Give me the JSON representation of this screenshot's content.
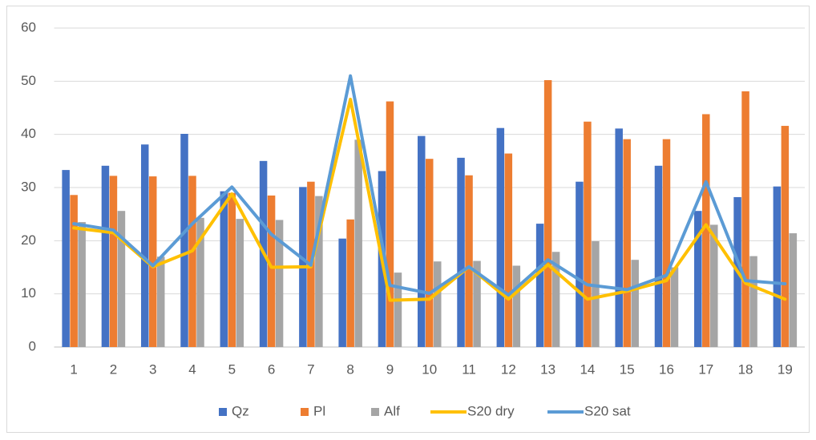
{
  "chart_data": {
    "type": "bar-line",
    "categories": [
      "1",
      "2",
      "3",
      "4",
      "5",
      "6",
      "7",
      "8",
      "9",
      "10",
      "11",
      "12",
      "13",
      "14",
      "15",
      "16",
      "17",
      "18",
      "19"
    ],
    "series": [
      {
        "name": "Qz",
        "type": "bar",
        "color": "#4472c4",
        "values": [
          33.3,
          34.1,
          38.1,
          40.1,
          29.3,
          35.0,
          30.1,
          20.4,
          33.1,
          39.7,
          35.6,
          41.2,
          23.2,
          31.1,
          41.1,
          34.1,
          25.6,
          28.2,
          30.2
        ]
      },
      {
        "name": "Pl",
        "type": "bar",
        "color": "#ed7d31",
        "values": [
          28.6,
          32.2,
          32.1,
          32.2,
          29.0,
          28.5,
          31.1,
          24.0,
          46.2,
          35.4,
          32.3,
          36.4,
          50.2,
          42.4,
          39.1,
          39.1,
          43.8,
          48.1,
          41.6
        ]
      },
      {
        "name": "Alf",
        "type": "bar",
        "color": "#a5a5a5",
        "values": [
          23.5,
          25.6,
          17.0,
          24.3,
          24.1,
          23.9,
          28.4,
          39.0,
          14.0,
          16.1,
          16.2,
          15.3,
          17.9,
          19.9,
          16.4,
          15.0,
          23.0,
          17.1,
          21.4
        ]
      },
      {
        "name": "S20 dry",
        "type": "line",
        "color": "#ffc000",
        "values": [
          22.4,
          21.5,
          15.1,
          18.1,
          28.8,
          15.0,
          15.1,
          46.6,
          8.8,
          9.0,
          15.1,
          9.0,
          15.5,
          9.0,
          10.5,
          12.5,
          23.0,
          12.0,
          9.0
        ]
      },
      {
        "name": "S20 sat",
        "type": "line",
        "color": "#5b9bd5",
        "values": [
          23.2,
          22.0,
          15.3,
          23.2,
          30.1,
          21.2,
          15.4,
          51.0,
          11.6,
          10.1,
          15.1,
          9.8,
          16.4,
          11.7,
          10.8,
          13.5,
          31.1,
          12.5,
          11.9
        ]
      }
    ],
    "ylim": [
      0,
      60
    ],
    "yticks": [
      0,
      10,
      20,
      30,
      40,
      50,
      60
    ],
    "grid": true,
    "legend": "bottom"
  }
}
